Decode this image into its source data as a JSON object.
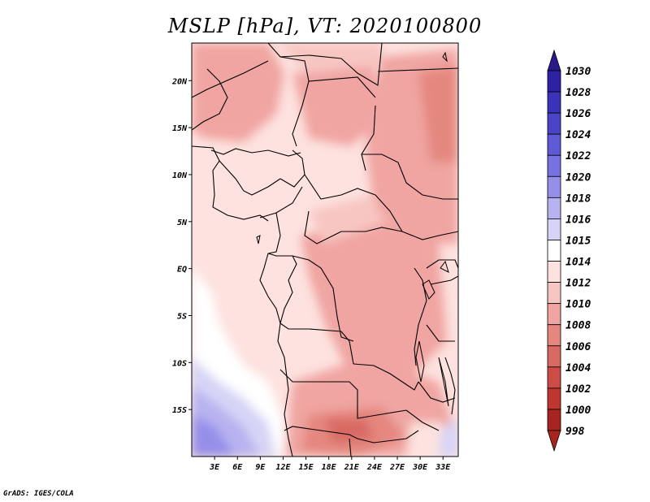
{
  "title": "MSLP [hPa], VT: 2020100800",
  "credit": "GrADS: IGES/COLA",
  "map": {
    "lon_range": [
      0,
      35
    ],
    "lat_range": [
      -20,
      24
    ],
    "lon_ticks": [
      {
        "value": 3,
        "label": "3E"
      },
      {
        "value": 6,
        "label": "6E"
      },
      {
        "value": 9,
        "label": "9E"
      },
      {
        "value": 12,
        "label": "12E"
      },
      {
        "value": 15,
        "label": "15E"
      },
      {
        "value": 18,
        "label": "18E"
      },
      {
        "value": 21,
        "label": "21E"
      },
      {
        "value": 24,
        "label": "24E"
      },
      {
        "value": 27,
        "label": "27E"
      },
      {
        "value": 30,
        "label": "30E"
      },
      {
        "value": 33,
        "label": "33E"
      }
    ],
    "lat_ticks": [
      {
        "value": 20,
        "label": "20N"
      },
      {
        "value": 15,
        "label": "15N"
      },
      {
        "value": 10,
        "label": "10N"
      },
      {
        "value": 5,
        "label": "5N"
      },
      {
        "value": 0,
        "label": "EQ"
      },
      {
        "value": -5,
        "label": "5S"
      },
      {
        "value": -10,
        "label": "10S"
      },
      {
        "value": -15,
        "label": "15S"
      }
    ]
  },
  "colorbar": {
    "levels": [
      {
        "label": "1030",
        "color": "#2a1a8c"
      },
      {
        "label": "1028",
        "color": "#2e22a4"
      },
      {
        "label": "1026",
        "color": "#3a32b8"
      },
      {
        "label": "1024",
        "color": "#4a45c8"
      },
      {
        "label": "1022",
        "color": "#5d5ad6"
      },
      {
        "label": "1020",
        "color": "#7772e0"
      },
      {
        "label": "1018",
        "color": "#958fe9"
      },
      {
        "label": "1016",
        "color": "#b7b3f0"
      },
      {
        "label": "1015",
        "color": "#d6d4f6"
      },
      {
        "label": "1014",
        "color": "#ffffff"
      },
      {
        "label": "1012",
        "color": "#fde2df"
      },
      {
        "label": "1010",
        "color": "#f8c6c2"
      },
      {
        "label": "1008",
        "color": "#f0a5a2"
      },
      {
        "label": "1006",
        "color": "#e4877f"
      },
      {
        "label": "1004",
        "color": "#d86a63"
      },
      {
        "label": "1002",
        "color": "#cc4c46"
      },
      {
        "label": "1000",
        "color": "#bf3530"
      },
      {
        "label": "998",
        "color": "#a82420"
      }
    ]
  }
}
